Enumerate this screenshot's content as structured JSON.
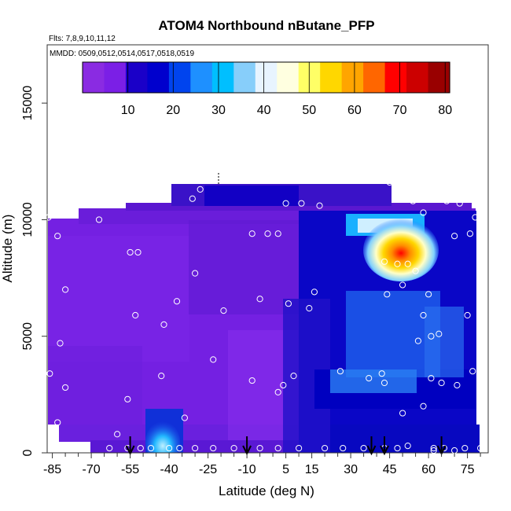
{
  "chart_data": {
    "type": "heatmap",
    "title": "ATOM4 Northbound nButane_PFP",
    "subtitle_flights": "Flts: 7,8,9,10,11,12",
    "subtitle_dates": "MMDD: 0509,0512,0514,0517,0518,0519",
    "xlabel": "Latitude (deg N)",
    "ylabel": "Altitude (m)",
    "xlim": [
      -87,
      83
    ],
    "ylim": [
      0,
      17500
    ],
    "x_ticks_labeled": [
      -85,
      -70,
      -55,
      -40,
      -25,
      -10,
      5,
      15,
      30,
      45,
      60,
      75
    ],
    "x_ticks_minor": [
      -80,
      -75,
      -65,
      -60,
      -50,
      -45,
      -35,
      -30,
      -20,
      -15,
      -5,
      0,
      10,
      20,
      25,
      35,
      40,
      50,
      55,
      65,
      70,
      80
    ],
    "y_ticks": [
      0,
      5000,
      10000,
      15000
    ],
    "colorbar": {
      "ticks": [
        10,
        20,
        30,
        40,
        50,
        60,
        70,
        80
      ],
      "min": 0,
      "max": 81,
      "colors": [
        "#8a2be2",
        "#7b1fe6",
        "#1a00c8",
        "#0000cd",
        "#0044ee",
        "#1e90ff",
        "#00bfff",
        "#87cefa",
        "#e8f4ff",
        "#ffffe0",
        "#ffff66",
        "#ffd700",
        "#ffa500",
        "#ff6600",
        "#ff0000",
        "#cc0000",
        "#990000"
      ]
    },
    "arrows_x": [
      -55,
      -10,
      38,
      43,
      65
    ],
    "samples": [
      [
        -86.5,
        10100
      ],
      [
        -83,
        9300
      ],
      [
        -79,
        10600
      ],
      [
        -80,
        7000
      ],
      [
        -82,
        4700
      ],
      [
        -80,
        2800
      ],
      [
        -86,
        3400
      ],
      [
        -83,
        1300
      ],
      [
        -67,
        10000
      ],
      [
        -55,
        8600
      ],
      [
        -52,
        8600
      ],
      [
        -53,
        5900
      ],
      [
        -42,
        5500
      ],
      [
        -43,
        3300
      ],
      [
        -56,
        2300
      ],
      [
        -60,
        800
      ],
      [
        -37,
        6500
      ],
      [
        -30,
        7700
      ],
      [
        -31,
        10900
      ],
      [
        -28,
        11300
      ],
      [
        -23,
        4000
      ],
      [
        -34,
        1500
      ],
      [
        -19,
        6100
      ],
      [
        -8,
        9400
      ],
      [
        -5,
        6600
      ],
      [
        -2,
        9400
      ],
      [
        5,
        10700
      ],
      [
        2,
        9400
      ],
      [
        11,
        10700
      ],
      [
        18,
        10600
      ],
      [
        6,
        6400
      ],
      [
        14,
        6200
      ],
      [
        16,
        6900
      ],
      [
        4,
        2900
      ],
      [
        8,
        3300
      ],
      [
        2,
        2600
      ],
      [
        -8,
        3100
      ],
      [
        26,
        3500
      ],
      [
        37,
        3200
      ],
      [
        42,
        3400
      ],
      [
        43,
        3000
      ],
      [
        45,
        11600
      ],
      [
        54,
        10800
      ],
      [
        58,
        10300
      ],
      [
        67,
        10800
      ],
      [
        72,
        10700
      ],
      [
        78,
        10100
      ],
      [
        76,
        9400
      ],
      [
        70,
        9300
      ],
      [
        43,
        8200
      ],
      [
        48,
        8100
      ],
      [
        52,
        8100
      ],
      [
        55,
        7800
      ],
      [
        44,
        6800
      ],
      [
        50,
        7200
      ],
      [
        60,
        6800
      ],
      [
        58,
        5900
      ],
      [
        61,
        5000
      ],
      [
        64,
        5100
      ],
      [
        56,
        4800
      ],
      [
        75,
        5900
      ],
      [
        77,
        3500
      ],
      [
        61,
        3200
      ],
      [
        65,
        3000
      ],
      [
        71,
        2900
      ],
      [
        58,
        2000
      ],
      [
        50,
        1700
      ],
      [
        66,
        200
      ],
      [
        74,
        200
      ],
      [
        80,
        6300
      ],
      [
        48,
        200
      ],
      [
        43,
        200
      ],
      [
        35,
        200
      ],
      [
        27,
        200
      ],
      [
        20,
        200
      ],
      [
        10,
        200
      ],
      [
        2,
        200
      ],
      [
        -5,
        200
      ],
      [
        -15,
        200
      ],
      [
        -23,
        200
      ],
      [
        -30,
        200
      ],
      [
        -36,
        200
      ],
      [
        -40,
        200
      ],
      [
        -47,
        200
      ],
      [
        -51,
        200
      ],
      [
        -56,
        200
      ],
      [
        -63,
        200
      ],
      [
        52,
        300
      ],
      [
        62,
        200
      ],
      [
        62,
        100
      ],
      [
        70,
        100
      ],
      [
        80,
        200
      ]
    ]
  }
}
